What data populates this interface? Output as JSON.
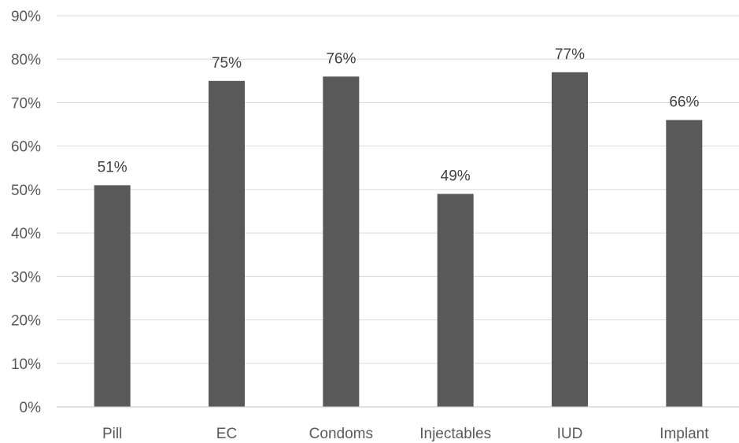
{
  "chart_data": {
    "type": "bar",
    "categories": [
      "Pill",
      "EC",
      "Condoms",
      "Injectables",
      "IUD",
      "Implant"
    ],
    "series": [
      {
        "values": [
          51,
          75,
          76,
          49,
          77,
          66
        ],
        "data_labels": [
          "51%",
          "75%",
          "76%",
          "49%",
          "77%",
          "66%"
        ]
      }
    ],
    "ylim": [
      0,
      90
    ],
    "yticks": [
      0,
      10,
      20,
      30,
      40,
      50,
      60,
      70,
      80,
      90
    ],
    "ytick_labels": [
      "0%",
      "10%",
      "20%",
      "30%",
      "40%",
      "50%",
      "60%",
      "70%",
      "80%",
      "90%"
    ],
    "grid": true,
    "legend": "none",
    "colors": {
      "bar": "#595959",
      "grid": "#d9d9d9",
      "tick_text": "#595959",
      "label_text": "#404040"
    }
  }
}
